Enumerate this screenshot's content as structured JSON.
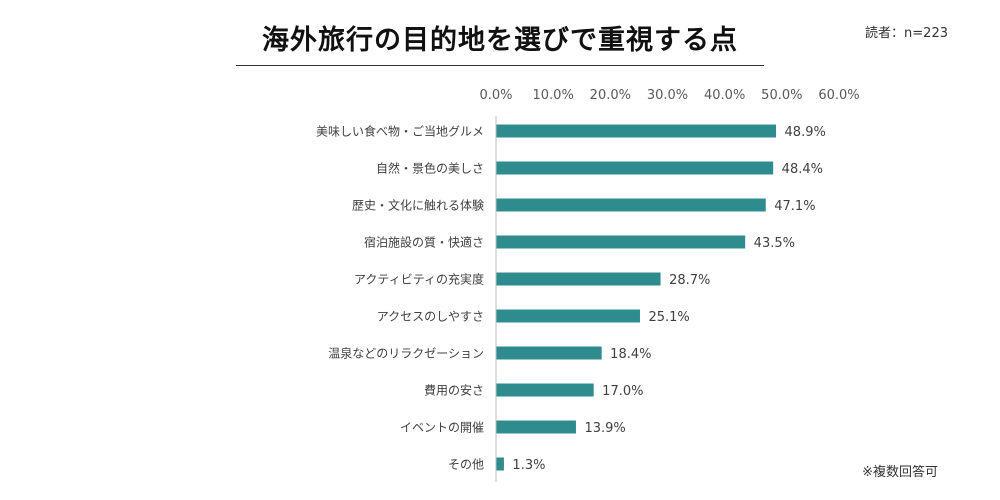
{
  "header": {
    "title": "海外旅行の目的地を選びで重視する点",
    "respondents": "読者：n=223"
  },
  "footnote": "※複数回答可",
  "colors": {
    "bar": "#2e8c8f",
    "axis": "#bfbfbf"
  },
  "chart_data": {
    "type": "bar",
    "orientation": "horizontal",
    "title": "海外旅行の目的地を選びで重視する点",
    "xlabel": "",
    "ylabel": "",
    "xlim": [
      0,
      60
    ],
    "x_ticks": [
      0,
      10,
      20,
      30,
      40,
      50,
      60
    ],
    "x_tick_labels": [
      "0.0%",
      "10.0%",
      "20.0%",
      "30.0%",
      "40.0%",
      "50.0%",
      "60.0%"
    ],
    "tick_position": "top",
    "grid": false,
    "categories": [
      "美味しい食べ物・ご当地グルメ",
      "自然・景色の美しさ",
      "歴史・文化に触れる体験",
      "宿泊施設の質・快適さ",
      "アクティビティの充実度",
      "アクセスのしやすさ",
      "温泉などのリラクゼーション",
      "費用の安さ",
      "イベントの開催",
      "その他"
    ],
    "values": [
      48.9,
      48.4,
      47.1,
      43.5,
      28.7,
      25.1,
      18.4,
      17.0,
      13.9,
      1.3
    ],
    "value_labels": [
      "48.9%",
      "48.4%",
      "47.1%",
      "43.5%",
      "28.7%",
      "25.1%",
      "18.4%",
      "17.0%",
      "13.9%",
      "1.3%"
    ]
  }
}
